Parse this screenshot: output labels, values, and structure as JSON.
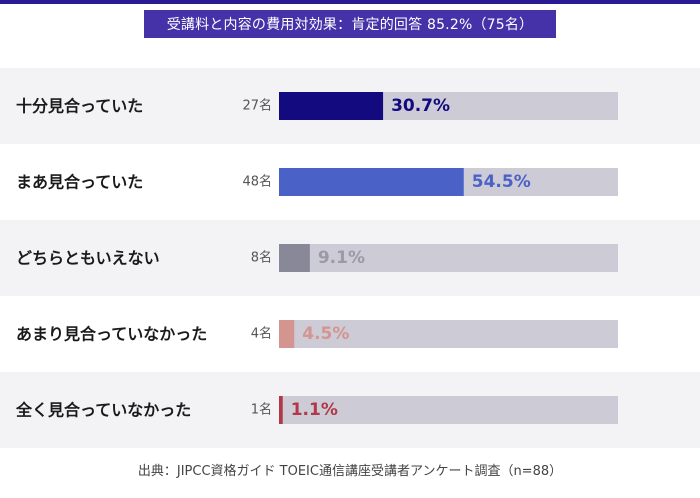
{
  "chart_data": {
    "type": "bar",
    "orientation": "horizontal",
    "title": "受講料と内容の費用対効果：肯定的回答 85.2%（75名）",
    "categories": [
      "十分見合っていた",
      "まあ見合っていた",
      "どちらともいえない",
      "あまり見合っていなかった",
      "全く見合っていなかった"
    ],
    "counts": [
      "27名",
      "48名",
      "8名",
      "4名",
      "1名"
    ],
    "values": [
      30.7,
      54.5,
      9.1,
      4.5,
      1.1
    ],
    "value_labels": [
      "30.7%",
      "54.5%",
      "9.1%",
      "4.5%",
      "1.1%"
    ],
    "xlim": [
      0,
      100
    ],
    "bar_colors": [
      "#120a7e",
      "#4a62c8",
      "#888899",
      "#d49490",
      "#b03848"
    ],
    "label_colors": [
      "#120a7e",
      "#4a62c8",
      "#9a9aa8",
      "#d49490",
      "#b03848"
    ],
    "track_color": "#cdcbd6",
    "xlabel": "",
    "ylabel": ""
  },
  "footer": {
    "source": "出典：JIPCC資格ガイド TOEIC通信講座受講者アンケート調査（n=88）"
  },
  "colors": {
    "header_bg": "#2a1a94",
    "title_bg": "#4532a8",
    "accent": "#c9a94a",
    "row_alt": "#f3f2f5",
    "category_text": "#1a1a1a",
    "count_text": "#555555"
  }
}
